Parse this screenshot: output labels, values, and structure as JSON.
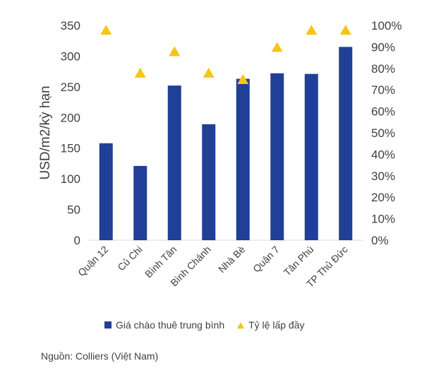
{
  "chart_data": {
    "type": "bar",
    "categories": [
      "Quận 12",
      "Củ Chi",
      "Bình Tân",
      "Bình Chánh",
      "Nhà Bè",
      "Quận 7",
      "Tân Phú",
      "TP Thủ Đức"
    ],
    "series": [
      {
        "name": "Giá chào thuê trung bình",
        "type": "bar",
        "axis": "left",
        "color": "#203f96",
        "values": [
          158,
          121,
          252,
          189,
          263,
          272,
          271,
          315
        ]
      },
      {
        "name": "Tỷ lệ lấp đầy",
        "type": "scatter",
        "marker": "triangle",
        "axis": "right",
        "color": "#f5c518",
        "values": [
          98,
          78,
          88,
          78,
          75,
          90,
          98,
          98
        ]
      }
    ],
    "ylabel": "USD/m2/kỳ hạn",
    "ylim": [
      0,
      350
    ],
    "yticks": [
      "0",
      "50",
      "100",
      "150",
      "200",
      "250",
      "300",
      "350"
    ],
    "y2lim": [
      0,
      100
    ],
    "y2ticks": [
      "0%",
      "10%",
      "20%",
      "30%",
      "40%",
      "50%",
      "60%",
      "70%",
      "80%",
      "90%",
      "100%"
    ],
    "grid": false,
    "legend_position": "bottom"
  },
  "legend": {
    "bar_label": "Giá chào thuê trung bình",
    "marker_label": "Tỷ lệ lấp đầy"
  },
  "source": "Nguồn: Colliers (Việt Nam)"
}
